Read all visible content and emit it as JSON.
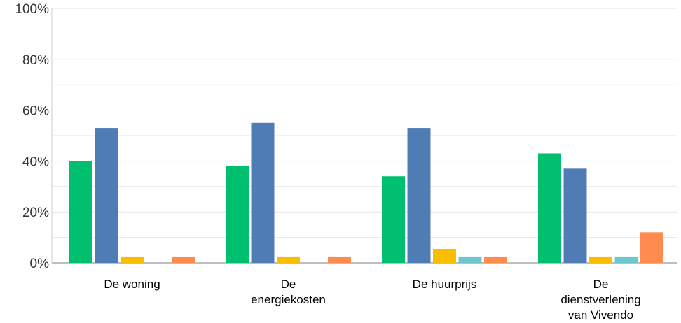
{
  "chart_data": {
    "type": "bar",
    "title": "",
    "xlabel": "",
    "ylabel": "",
    "ylim": [
      0,
      100
    ],
    "y_ticks": [
      {
        "value": 0,
        "label": "0%"
      },
      {
        "value": 20,
        "label": "20%"
      },
      {
        "value": 40,
        "label": "40%"
      },
      {
        "value": 60,
        "label": "60%"
      },
      {
        "value": 80,
        "label": "80%"
      },
      {
        "value": 100,
        "label": "100%"
      }
    ],
    "grid": true,
    "legend": "none",
    "categories": [
      [
        "De woning"
      ],
      [
        "De",
        "energiekosten"
      ],
      [
        "De huurprijs"
      ],
      [
        "De",
        "dienstverlening",
        "van Vivendo"
      ]
    ],
    "series": [
      {
        "color": "#00bf6f",
        "values": [
          40,
          38,
          34,
          43
        ]
      },
      {
        "color": "#507cb6",
        "values": [
          53,
          55,
          53,
          37
        ]
      },
      {
        "color": "#f9be00",
        "values": [
          2.5,
          2.5,
          5.5,
          2.5
        ]
      },
      {
        "color": "#6bc8cd",
        "values": [
          0,
          0,
          2.5,
          2.5
        ]
      },
      {
        "color": "#ff8b4f",
        "values": [
          2.5,
          2.5,
          2.5,
          12
        ]
      }
    ]
  }
}
